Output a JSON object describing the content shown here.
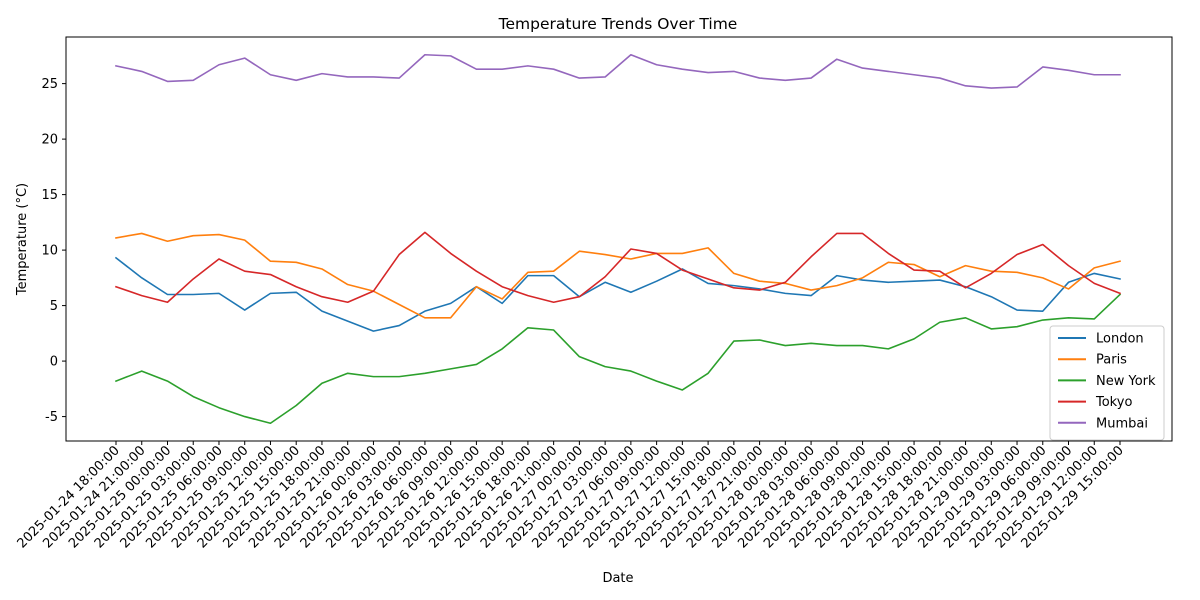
{
  "chart_data": {
    "type": "line",
    "title": "Temperature Trends Over Time",
    "xlabel": "Date",
    "ylabel": "Temperature (°C)",
    "ylim": [
      -7.2,
      29.2
    ],
    "yticks": [
      -5,
      0,
      5,
      10,
      15,
      20,
      25
    ],
    "grid": false,
    "legend_position": "bottom-right",
    "x": [
      "2025-01-24 18:00:00",
      "2025-01-24 21:00:00",
      "2025-01-25 00:00:00",
      "2025-01-25 03:00:00",
      "2025-01-25 06:00:00",
      "2025-01-25 09:00:00",
      "2025-01-25 12:00:00",
      "2025-01-25 15:00:00",
      "2025-01-25 18:00:00",
      "2025-01-25 21:00:00",
      "2025-01-26 00:00:00",
      "2025-01-26 03:00:00",
      "2025-01-26 06:00:00",
      "2025-01-26 09:00:00",
      "2025-01-26 12:00:00",
      "2025-01-26 15:00:00",
      "2025-01-26 18:00:00",
      "2025-01-26 21:00:00",
      "2025-01-27 00:00:00",
      "2025-01-27 03:00:00",
      "2025-01-27 06:00:00",
      "2025-01-27 09:00:00",
      "2025-01-27 12:00:00",
      "2025-01-27 15:00:00",
      "2025-01-27 18:00:00",
      "2025-01-27 21:00:00",
      "2025-01-28 00:00:00",
      "2025-01-28 03:00:00",
      "2025-01-28 06:00:00",
      "2025-01-28 09:00:00",
      "2025-01-28 12:00:00",
      "2025-01-28 15:00:00",
      "2025-01-28 18:00:00",
      "2025-01-28 21:00:00",
      "2025-01-29 00:00:00",
      "2025-01-29 03:00:00",
      "2025-01-29 06:00:00",
      "2025-01-29 09:00:00",
      "2025-01-29 12:00:00",
      "2025-01-29 15:00:00"
    ],
    "series": [
      {
        "name": "London",
        "color": "#1f77b4",
        "values": [
          9.3,
          7.5,
          6.0,
          6.0,
          6.1,
          4.6,
          6.1,
          6.2,
          4.5,
          3.6,
          2.7,
          3.2,
          4.5,
          5.2,
          6.7,
          5.2,
          7.7,
          7.7,
          5.8,
          7.1,
          6.2,
          7.2,
          8.3,
          7.0,
          6.8,
          6.5,
          6.1,
          5.9,
          7.7,
          7.3,
          7.1,
          7.2,
          7.3,
          6.7,
          5.8,
          4.6,
          4.5,
          7.1,
          7.9,
          7.4
        ]
      },
      {
        "name": "Paris",
        "color": "#ff7f0e",
        "values": [
          11.1,
          11.5,
          10.8,
          11.3,
          11.4,
          10.9,
          9.0,
          8.9,
          8.3,
          6.9,
          6.3,
          5.1,
          3.9,
          3.9,
          6.7,
          5.6,
          8.0,
          8.1,
          9.9,
          9.6,
          9.2,
          9.7,
          9.7,
          10.2,
          7.9,
          7.2,
          7.0,
          6.4,
          6.8,
          7.5,
          8.9,
          8.7,
          7.6,
          8.6,
          8.1,
          8.0,
          7.5,
          6.5,
          8.4,
          9.0
        ]
      },
      {
        "name": "New York",
        "color": "#2ca02c",
        "values": [
          -1.8,
          -0.9,
          -1.8,
          -3.2,
          -4.2,
          -5.0,
          -5.6,
          -4.0,
          -2.0,
          -1.1,
          -1.4,
          -1.4,
          -1.1,
          -0.7,
          -0.3,
          1.1,
          3.0,
          2.8,
          0.4,
          -0.5,
          -0.9,
          -1.8,
          -2.6,
          -1.1,
          1.8,
          1.9,
          1.4,
          1.6,
          1.4,
          1.4,
          1.1,
          2.0,
          3.5,
          3.9,
          2.9,
          3.1,
          3.7,
          3.9,
          3.8,
          6.0
        ]
      },
      {
        "name": "Tokyo",
        "color": "#d62728",
        "values": [
          6.7,
          5.9,
          5.3,
          7.4,
          9.2,
          8.1,
          7.8,
          6.7,
          5.8,
          5.3,
          6.3,
          9.6,
          11.6,
          9.7,
          8.1,
          6.7,
          5.9,
          5.3,
          5.8,
          7.6,
          10.1,
          9.7,
          8.2,
          7.4,
          6.6,
          6.4,
          7.1,
          9.4,
          11.5,
          11.5,
          9.7,
          8.2,
          8.1,
          6.6,
          7.9,
          9.6,
          10.5,
          8.6,
          7.0,
          6.1
        ]
      },
      {
        "name": "Mumbai",
        "color": "#9467bd",
        "values": [
          26.6,
          26.1,
          25.2,
          25.3,
          26.7,
          27.3,
          25.8,
          25.3,
          25.9,
          25.6,
          25.6,
          25.5,
          27.6,
          27.5,
          26.3,
          26.3,
          26.6,
          26.3,
          25.5,
          25.6,
          27.6,
          26.7,
          26.3,
          26.0,
          26.1,
          25.5,
          25.3,
          25.5,
          27.2,
          26.4,
          26.1,
          25.8,
          25.5,
          24.8,
          24.6,
          24.7,
          26.5,
          26.2,
          25.8,
          25.8
        ]
      }
    ]
  }
}
